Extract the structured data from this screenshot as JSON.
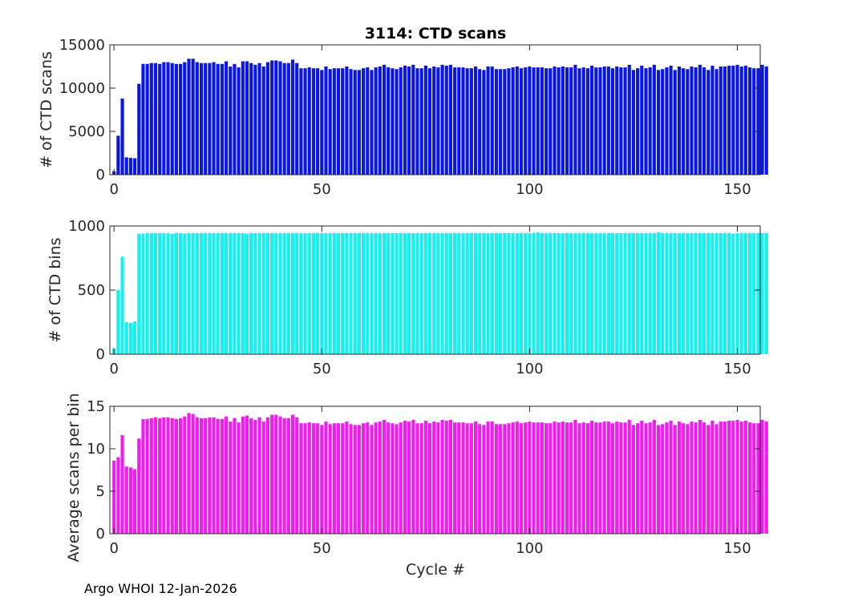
{
  "footer": "Argo WHOI 12-Jan-2026",
  "chart_data": [
    {
      "type": "bar",
      "title": "3114: CTD scans",
      "xlabel": "",
      "ylabel": "# of CTD scans",
      "color": "#0a16e6",
      "xlim": [
        -1,
        155.5
      ],
      "ylim": [
        0,
        15000
      ],
      "xticks": [
        0,
        50,
        100,
        150
      ],
      "yticks": [
        0,
        5000,
        10000,
        15000
      ],
      "x_start": 0,
      "values": [
        400,
        4500,
        8800,
        2000,
        1950,
        1900,
        10500,
        12800,
        12800,
        12900,
        12900,
        12800,
        13000,
        13000,
        12900,
        12800,
        12800,
        13000,
        13400,
        13400,
        13000,
        12900,
        12900,
        12900,
        13000,
        12800,
        12800,
        13100,
        12500,
        12800,
        12400,
        13100,
        13100,
        12900,
        12700,
        12900,
        12500,
        13000,
        13200,
        13200,
        13100,
        12900,
        12900,
        13300,
        12900,
        12300,
        12300,
        12400,
        12300,
        12300,
        12100,
        12500,
        12200,
        12300,
        12300,
        12300,
        12500,
        12200,
        12100,
        12100,
        12300,
        12400,
        12100,
        12400,
        12500,
        12700,
        12400,
        12300,
        12200,
        12400,
        12600,
        12500,
        12700,
        12300,
        12300,
        12600,
        12300,
        12500,
        12400,
        12700,
        12600,
        12700,
        12400,
        12400,
        12400,
        12300,
        12300,
        12500,
        12200,
        12100,
        12500,
        12500,
        12200,
        12200,
        12200,
        12300,
        12400,
        12500,
        12300,
        12400,
        12500,
        12400,
        12400,
        12400,
        12300,
        12300,
        12500,
        12400,
        12500,
        12400,
        12400,
        12700,
        12300,
        12400,
        12300,
        12600,
        12400,
        12400,
        12500,
        12500,
        12300,
        12500,
        12400,
        12400,
        12700,
        12100,
        12300,
        12600,
        12300,
        12400,
        12700,
        12100,
        12200,
        12400,
        12600,
        12100,
        12500,
        12300,
        12200,
        12500,
        12400,
        12700,
        12400,
        12100,
        12600,
        12200,
        12500,
        12500,
        12600,
        12600,
        12700,
        12500,
        12600,
        12400,
        12300,
        12300,
        12700,
        12500
      ]
    },
    {
      "type": "bar",
      "title": "",
      "xlabel": "",
      "ylabel": "# of CTD bins",
      "color": "#16f0ee",
      "xlim": [
        -1,
        155.5
      ],
      "ylim": [
        0,
        1000
      ],
      "xticks": [
        0,
        50,
        100,
        150
      ],
      "yticks": [
        0,
        500,
        1000
      ],
      "x_start": 0,
      "values": [
        45,
        500,
        760,
        250,
        245,
        255,
        940,
        940,
        945,
        945,
        945,
        945,
        945,
        945,
        940,
        945,
        945,
        940,
        945,
        945,
        945,
        945,
        945,
        945,
        945,
        945,
        945,
        945,
        945,
        945,
        945,
        945,
        940,
        945,
        945,
        945,
        945,
        945,
        945,
        945,
        945,
        945,
        945,
        945,
        945,
        945,
        945,
        945,
        945,
        945,
        945,
        945,
        945,
        945,
        945,
        945,
        945,
        945,
        945,
        945,
        945,
        945,
        945,
        945,
        945,
        945,
        945,
        945,
        945,
        945,
        945,
        945,
        945,
        945,
        945,
        945,
        945,
        945,
        945,
        945,
        945,
        945,
        945,
        945,
        945,
        945,
        945,
        945,
        945,
        945,
        945,
        945,
        945,
        945,
        945,
        945,
        945,
        945,
        945,
        945,
        945,
        945,
        950,
        945,
        945,
        945,
        945,
        945,
        945,
        945,
        945,
        945,
        945,
        945,
        945,
        945,
        945,
        945,
        945,
        945,
        945,
        945,
        945,
        945,
        945,
        945,
        945,
        945,
        945,
        945,
        945,
        950,
        945,
        945,
        945,
        945,
        945,
        945,
        945,
        945,
        945,
        945,
        945,
        945,
        945,
        945,
        945,
        945,
        945,
        940,
        945,
        945,
        945,
        945,
        945,
        945,
        945,
        945
      ]
    },
    {
      "type": "bar",
      "title": "",
      "xlabel": "Cycle #",
      "ylabel": "Average scans per bin",
      "color": "#f01cf0",
      "xlim": [
        -1,
        155.5
      ],
      "ylim": [
        0,
        15
      ],
      "xticks": [
        0,
        50,
        100,
        150
      ],
      "yticks": [
        0,
        5,
        10,
        15
      ],
      "x_start": 0,
      "values": [
        8.6,
        9.0,
        11.6,
        7.9,
        7.8,
        7.6,
        11.2,
        13.5,
        13.5,
        13.6,
        13.7,
        13.6,
        13.7,
        13.7,
        13.6,
        13.5,
        13.6,
        13.8,
        14.2,
        14.1,
        13.7,
        13.6,
        13.6,
        13.7,
        13.7,
        13.5,
        13.5,
        13.8,
        13.2,
        13.6,
        13.1,
        13.8,
        13.9,
        13.6,
        13.4,
        13.7,
        13.2,
        13.7,
        14.0,
        14.0,
        13.8,
        13.6,
        13.6,
        14.0,
        13.7,
        13.0,
        13.0,
        13.1,
        13.0,
        13.0,
        12.8,
        13.2,
        12.9,
        13.0,
        13.0,
        13.0,
        13.2,
        12.9,
        12.8,
        12.8,
        13.0,
        13.1,
        12.8,
        13.1,
        13.2,
        13.4,
        13.1,
        13.0,
        12.9,
        13.1,
        13.3,
        13.2,
        13.4,
        13.0,
        13.0,
        13.3,
        13.0,
        13.2,
        13.1,
        13.4,
        13.3,
        13.4,
        13.1,
        13.1,
        13.1,
        13.0,
        13.0,
        13.2,
        12.9,
        12.8,
        13.2,
        13.2,
        12.9,
        12.9,
        12.9,
        13.0,
        13.1,
        13.2,
        13.0,
        13.1,
        13.2,
        13.1,
        13.1,
        13.1,
        13.0,
        13.0,
        13.2,
        13.1,
        13.2,
        13.1,
        13.1,
        13.4,
        13.0,
        13.1,
        13.0,
        13.3,
        13.1,
        13.1,
        13.2,
        13.2,
        13.0,
        13.2,
        13.1,
        13.1,
        13.4,
        12.8,
        13.0,
        13.3,
        13.0,
        13.1,
        13.4,
        12.8,
        12.9,
        13.1,
        13.3,
        12.8,
        13.2,
        13.0,
        12.9,
        13.2,
        13.1,
        13.4,
        13.1,
        12.8,
        13.3,
        12.9,
        13.2,
        13.2,
        13.3,
        13.3,
        13.4,
        13.2,
        13.3,
        13.1,
        13.0,
        13.0,
        13.4,
        13.2
      ]
    }
  ]
}
